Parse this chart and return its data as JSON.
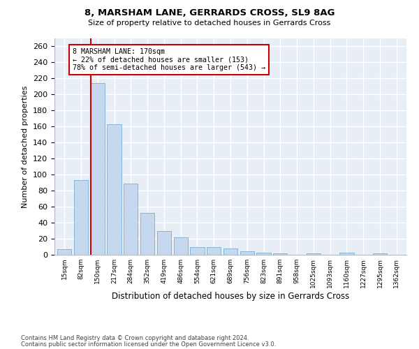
{
  "title": "8, MARSHAM LANE, GERRARDS CROSS, SL9 8AG",
  "subtitle": "Size of property relative to detached houses in Gerrards Cross",
  "xlabel": "Distribution of detached houses by size in Gerrards Cross",
  "ylabel": "Number of detached properties",
  "categories": [
    "15sqm",
    "82sqm",
    "150sqm",
    "217sqm",
    "284sqm",
    "352sqm",
    "419sqm",
    "486sqm",
    "554sqm",
    "621sqm",
    "689sqm",
    "756sqm",
    "823sqm",
    "891sqm",
    "958sqm",
    "1025sqm",
    "1093sqm",
    "1160sqm",
    "1227sqm",
    "1295sqm",
    "1362sqm"
  ],
  "values": [
    7,
    93,
    214,
    163,
    89,
    52,
    30,
    22,
    10,
    10,
    8,
    4,
    3,
    2,
    0,
    2,
    0,
    3,
    0,
    2,
    0
  ],
  "bar_color": "#c5d8ed",
  "bar_edge_color": "#7aadd4",
  "vline_color": "#cc0000",
  "annotation_text": "8 MARSHAM LANE: 170sqm\n← 22% of detached houses are smaller (153)\n78% of semi-detached houses are larger (543) →",
  "annotation_box_color": "#ffffff",
  "annotation_box_edge": "#cc0000",
  "ylim": [
    0,
    270
  ],
  "yticks": [
    0,
    20,
    40,
    60,
    80,
    100,
    120,
    140,
    160,
    180,
    200,
    220,
    240,
    260
  ],
  "background_color": "#e8eef5",
  "fig_background": "#ffffff",
  "grid_color": "#ffffff",
  "footer_line1": "Contains HM Land Registry data © Crown copyright and database right 2024.",
  "footer_line2": "Contains public sector information licensed under the Open Government Licence v3.0."
}
